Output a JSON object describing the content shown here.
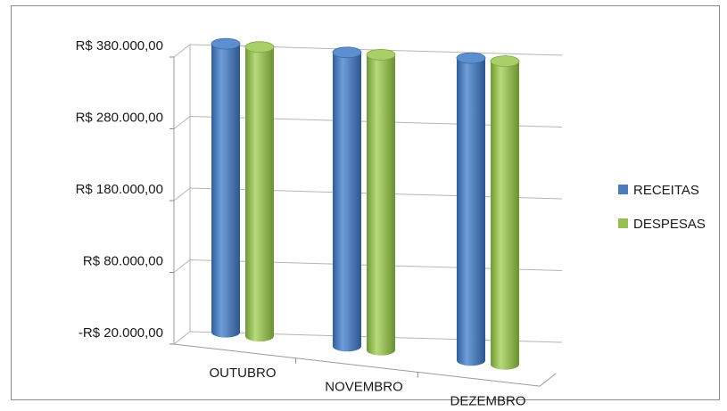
{
  "chart_data": {
    "type": "bar",
    "title": "",
    "xlabel": "",
    "ylabel": "",
    "categories": [
      "OUTUBRO",
      "NOVEMBRO",
      "DEZEMBRO"
    ],
    "series": [
      {
        "name": "RECEITAS",
        "color": "#4a7ebb",
        "values": [
          375000,
          368000,
          365000
        ]
      },
      {
        "name": "DESPESAS",
        "color": "#98c050",
        "values": [
          372000,
          366000,
          362000
        ]
      }
    ],
    "ylim": [
      -20000,
      380000
    ],
    "yticks": [
      -20000,
      80000,
      180000,
      280000,
      380000
    ],
    "ytick_labels": [
      "-R$ 20.000,00",
      "R$ 80.000,00",
      "R$ 180.000,00",
      "R$ 280.000,00",
      "R$ 380.000,00"
    ],
    "grid": true,
    "legend_position": "right",
    "style": "3d-cylinder"
  }
}
